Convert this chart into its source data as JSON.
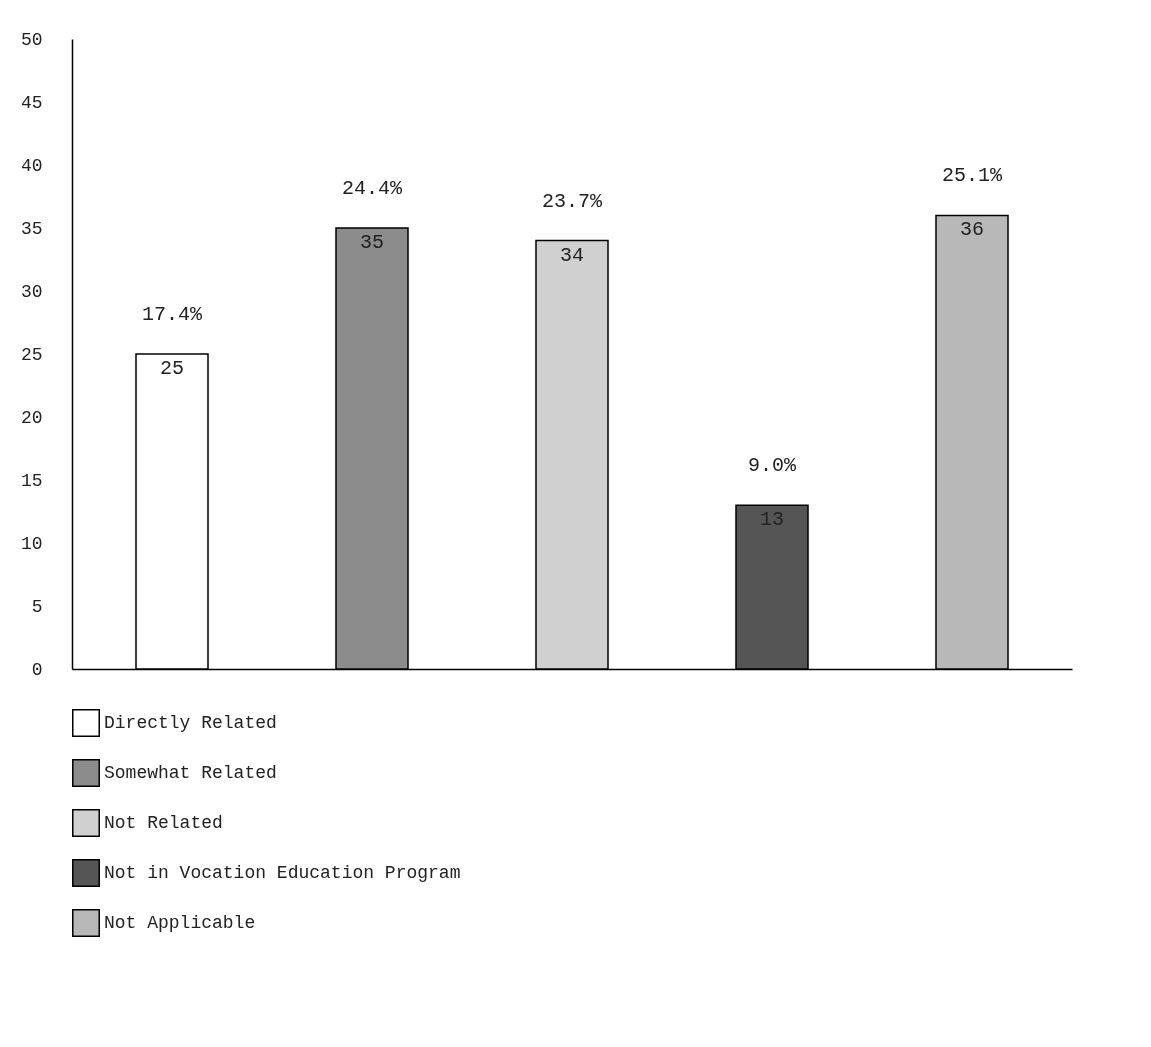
{
  "chart_data": {
    "type": "bar",
    "categories": [
      null,
      null,
      null,
      null,
      null
    ],
    "series": [
      {
        "name": "Directly Related",
        "color": "#ffffff",
        "values": [
          25,
          null,
          null,
          null,
          null
        ]
      },
      {
        "name": "Somewhat Related",
        "color": "#8c8c8c",
        "values": [
          null,
          35,
          null,
          null,
          null
        ]
      },
      {
        "name": "Not Related",
        "color": "#d0d0d0",
        "values": [
          null,
          null,
          34,
          null,
          null
        ]
      },
      {
        "name": "Not in Vocation Education Program",
        "color": "#555555",
        "values": [
          null,
          null,
          null,
          13,
          null
        ]
      },
      {
        "name": "Not Applicable",
        "color": "#b8b8b8",
        "values": [
          null,
          null,
          null,
          null,
          36
        ]
      }
    ],
    "annotations": [
      "17.4%",
      "24.4%",
      "23.7%",
      "9.0%",
      "25.1%"
    ],
    "ylim": [
      0,
      50
    ],
    "yticks": [
      0,
      5,
      10,
      15,
      20,
      25,
      30,
      35,
      40,
      45,
      50
    ],
    "data_labels": true,
    "grid": false,
    "legend": "bottom",
    "tick_labels": "y"
  }
}
